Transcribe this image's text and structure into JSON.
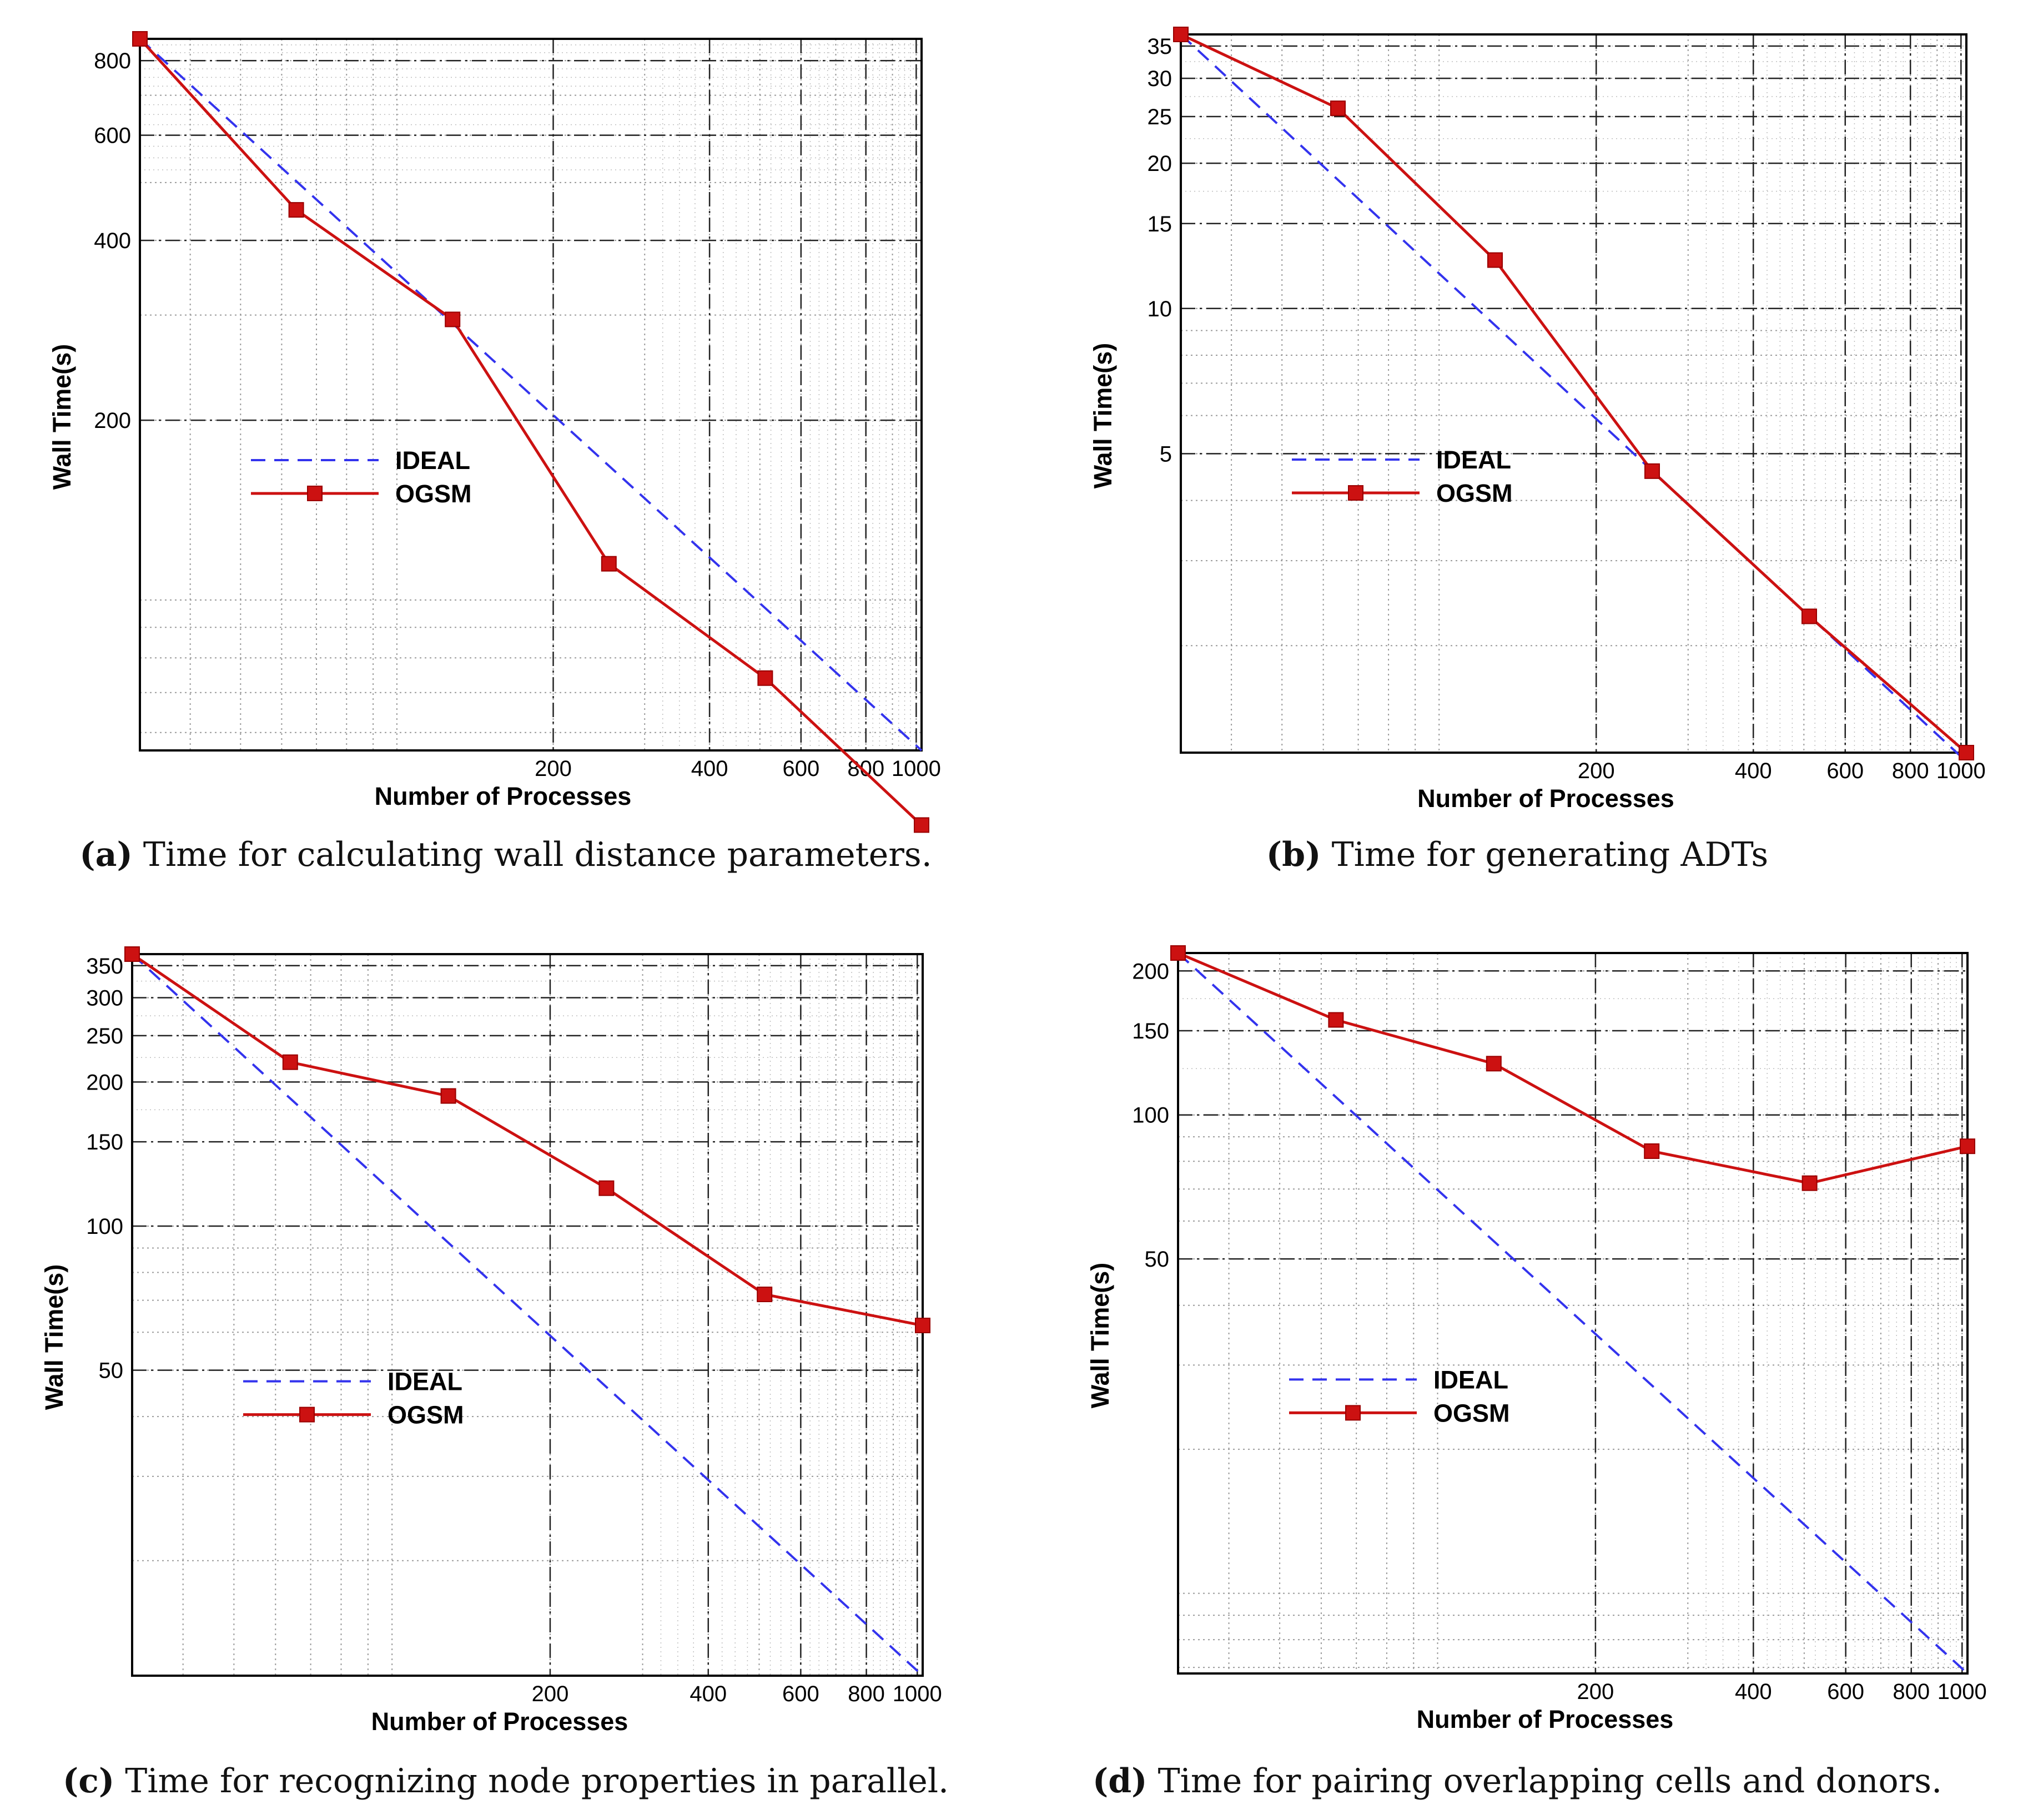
{
  "chart_data": [
    {
      "id": "a",
      "type": "line",
      "xscale": "log",
      "yscale": "log",
      "xlabel": "Number of Processes",
      "ylabel": "Wall Time(s)",
      "xlim": [
        32,
        1024
      ],
      "ylim": [
        56,
        870
      ],
      "xticks": [
        200,
        400,
        600,
        800,
        1000
      ],
      "xtick_labels": [
        "200",
        "400",
        "600",
        "800",
        "1000"
      ],
      "yticks": [
        200,
        400,
        600,
        800
      ],
      "ytick_labels": [
        "200",
        "400",
        "600",
        "800"
      ],
      "series": [
        {
          "name": "IDEAL",
          "style": "dashed",
          "color": "#3333ee",
          "x": [
            32,
            1024
          ],
          "y": [
            870,
            56
          ]
        },
        {
          "name": "OGSM",
          "style": "solid-square",
          "color": "#cc1111",
          "x": [
            32,
            64,
            128,
            256,
            512,
            1024
          ],
          "y": [
            870,
            450,
            295,
            115,
            74,
            42
          ]
        }
      ],
      "legend": "center-left",
      "caption_letter": "(a)",
      "caption_text": " Time for calculating wall distance parameters."
    },
    {
      "id": "b",
      "type": "line",
      "xscale": "log",
      "yscale": "log",
      "xlabel": "Number of Processes",
      "ylabel": "Wall Time(s)",
      "xlim": [
        32,
        1024
      ],
      "ylim": [
        1.2,
        37
      ],
      "xticks": [
        200,
        400,
        600,
        800,
        1000
      ],
      "xtick_labels": [
        "200",
        "400",
        "600",
        "800",
        "1000"
      ],
      "yticks": [
        5,
        10,
        15,
        20,
        25,
        30,
        35
      ],
      "ytick_labels": [
        "5",
        "10",
        "15",
        "20",
        "25",
        "30",
        "35"
      ],
      "series": [
        {
          "name": "IDEAL",
          "style": "dashed",
          "color": "#3333ee",
          "x": [
            32,
            1024
          ],
          "y": [
            37,
            1.15
          ]
        },
        {
          "name": "OGSM",
          "style": "solid-square",
          "color": "#cc1111",
          "x": [
            32,
            64,
            128,
            256,
            512,
            1024
          ],
          "y": [
            37,
            26,
            12.6,
            4.6,
            2.3,
            1.2
          ]
        }
      ],
      "legend": "center-left",
      "caption_letter": "(b)",
      "caption_text": " Time for generating ADTs"
    },
    {
      "id": "c",
      "type": "line",
      "xscale": "log",
      "yscale": "log",
      "xlabel": "Number of Processes",
      "ylabel": "Wall Time(s)",
      "xlim": [
        32,
        1024
      ],
      "ylim": [
        11.5,
        370
      ],
      "xticks": [
        200,
        400,
        600,
        800,
        1000
      ],
      "xtick_labels": [
        "200",
        "400",
        "600",
        "800",
        "1000"
      ],
      "yticks": [
        50,
        100,
        150,
        200,
        250,
        300,
        350
      ],
      "ytick_labels": [
        "50",
        "100",
        "150",
        "200",
        "250",
        "300",
        "350"
      ],
      "series": [
        {
          "name": "IDEAL",
          "style": "dashed",
          "color": "#3333ee",
          "x": [
            32,
            1024
          ],
          "y": [
            370,
            11.5
          ]
        },
        {
          "name": "OGSM",
          "style": "solid-square",
          "color": "#cc1111",
          "x": [
            32,
            64,
            128,
            256,
            512,
            1024
          ],
          "y": [
            370,
            220,
            187,
            120,
            72,
            62
          ]
        }
      ],
      "legend": "center-left",
      "caption_letter": "(c)",
      "caption_text": " Time for recognizing node properties in parallel."
    },
    {
      "id": "d",
      "type": "line",
      "xscale": "log",
      "yscale": "log",
      "xlabel": "Number of Processes",
      "ylabel": "Wall Time(s)",
      "xlim": [
        32,
        1024
      ],
      "ylim": [
        6.8,
        218
      ],
      "xticks": [
        200,
        400,
        600,
        800,
        1000
      ],
      "xtick_labels": [
        "200",
        "400",
        "600",
        "800",
        "1000"
      ],
      "yticks": [
        50,
        100,
        150,
        200
      ],
      "ytick_labels": [
        "50",
        "100",
        "150",
        "200"
      ],
      "series": [
        {
          "name": "IDEAL",
          "style": "dashed",
          "color": "#3333ee",
          "x": [
            32,
            1024
          ],
          "y": [
            218,
            6.8
          ]
        },
        {
          "name": "OGSM",
          "style": "solid-square",
          "color": "#cc1111",
          "x": [
            32,
            64,
            128,
            256,
            512,
            1024
          ],
          "y": [
            218,
            158,
            128,
            84,
            72,
            86
          ]
        }
      ],
      "legend": "center-left",
      "caption_letter": "(d)",
      "caption_text": " Time for pairing overlapping cells and donors."
    }
  ]
}
